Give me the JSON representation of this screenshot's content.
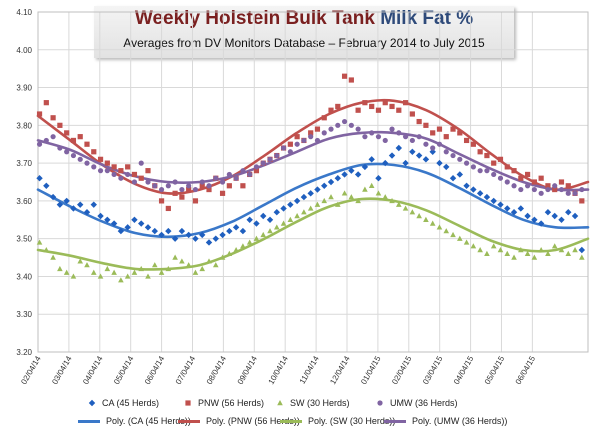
{
  "chart_data": {
    "type": "scatter",
    "title_part1": "Weekly Holstein Bulk Tank",
    "title_part2": "Milk Fat %",
    "subtitle": "Averages from DV Monitors Database – February 2014 to July 2015",
    "y_ticks": [
      "3.20",
      "3.30",
      "3.40",
      "3.50",
      "3.60",
      "3.70",
      "3.80",
      "3.90",
      "4.00",
      "4.10"
    ],
    "ylim": [
      3.2,
      4.1
    ],
    "x_ticks": [
      "02/04/14",
      "03/04/14",
      "04/04/14",
      "05/04/14",
      "06/04/14",
      "07/04/14",
      "08/04/14",
      "09/04/14",
      "10/04/14",
      "11/04/14",
      "12/04/14",
      "01/04/15",
      "02/04/15",
      "03/04/15",
      "04/04/15",
      "05/04/15",
      "06/04/15"
    ],
    "xlim": [
      0,
      17.8
    ],
    "grid": true,
    "legend_position": "bottom",
    "series": [
      {
        "name": "CA (45 Herds)",
        "marker": "diamond",
        "color": "#1f5fbf",
        "values": [
          3.66,
          3.64,
          3.61,
          3.59,
          3.6,
          3.58,
          3.59,
          3.57,
          3.59,
          3.56,
          3.55,
          3.54,
          3.52,
          3.53,
          3.55,
          3.54,
          3.53,
          3.52,
          3.51,
          3.52,
          3.5,
          3.52,
          3.51,
          3.5,
          3.51,
          3.49,
          3.5,
          3.51,
          3.52,
          3.53,
          3.52,
          3.55,
          3.54,
          3.56,
          3.55,
          3.57,
          3.58,
          3.59,
          3.6,
          3.61,
          3.62,
          3.63,
          3.64,
          3.65,
          3.66,
          3.67,
          3.68,
          3.67,
          3.69,
          3.71,
          3.66,
          3.7,
          3.72,
          3.74,
          3.7,
          3.73,
          3.72,
          3.71,
          3.73,
          3.7,
          3.69,
          3.66,
          3.67,
          3.64,
          3.63,
          3.62,
          3.61,
          3.6,
          3.59,
          3.58,
          3.57,
          3.58,
          3.56,
          3.55,
          3.54,
          3.57,
          3.56,
          3.55,
          3.57,
          3.56,
          3.47
        ]
      },
      {
        "name": "PNW (56 Herds)",
        "marker": "square",
        "color": "#c0504d",
        "values": [
          3.83,
          3.86,
          3.82,
          3.8,
          3.78,
          3.76,
          3.77,
          3.75,
          3.73,
          3.71,
          3.7,
          3.69,
          3.68,
          3.69,
          3.67,
          3.66,
          3.68,
          3.64,
          3.6,
          3.58,
          3.62,
          3.61,
          3.63,
          3.6,
          3.64,
          3.63,
          3.66,
          3.62,
          3.64,
          3.66,
          3.64,
          3.67,
          3.68,
          3.7,
          3.71,
          3.72,
          3.74,
          3.75,
          3.77,
          3.76,
          3.78,
          3.79,
          3.82,
          3.84,
          3.85,
          3.93,
          3.92,
          3.84,
          3.86,
          3.85,
          3.84,
          3.86,
          3.85,
          3.84,
          3.86,
          3.83,
          3.81,
          3.8,
          3.78,
          3.79,
          3.77,
          3.79,
          3.78,
          3.76,
          3.75,
          3.73,
          3.72,
          3.7,
          3.71,
          3.69,
          3.68,
          3.66,
          3.67,
          3.65,
          3.66,
          3.64,
          3.63,
          3.65,
          3.64,
          3.62,
          3.6
        ]
      },
      {
        "name": "SW (30 Herds)",
        "marker": "triangle",
        "color": "#9bbb59",
        "values": [
          3.49,
          3.47,
          3.45,
          3.42,
          3.41,
          3.4,
          3.44,
          3.43,
          3.41,
          3.4,
          3.42,
          3.41,
          3.39,
          3.4,
          3.41,
          3.42,
          3.4,
          3.43,
          3.41,
          3.42,
          3.45,
          3.44,
          3.43,
          3.41,
          3.42,
          3.44,
          3.43,
          3.45,
          3.46,
          3.47,
          3.48,
          3.49,
          3.5,
          3.51,
          3.52,
          3.53,
          3.54,
          3.55,
          3.56,
          3.57,
          3.58,
          3.59,
          3.6,
          3.61,
          3.59,
          3.62,
          3.61,
          3.6,
          3.63,
          3.64,
          3.62,
          3.61,
          3.6,
          3.59,
          3.58,
          3.57,
          3.56,
          3.55,
          3.54,
          3.53,
          3.52,
          3.51,
          3.5,
          3.49,
          3.48,
          3.47,
          3.46,
          3.48,
          3.47,
          3.46,
          3.45,
          3.47,
          3.46,
          3.45,
          3.47,
          3.46,
          3.48,
          3.47,
          3.46,
          3.47,
          3.45
        ]
      },
      {
        "name": "UMW (36 Herds)",
        "marker": "circle",
        "color": "#8064a2",
        "values": [
          3.75,
          3.76,
          3.77,
          3.74,
          3.73,
          3.72,
          3.71,
          3.7,
          3.69,
          3.68,
          3.68,
          3.67,
          3.66,
          3.67,
          3.65,
          3.7,
          3.65,
          3.64,
          3.63,
          3.64,
          3.65,
          3.63,
          3.64,
          3.63,
          3.65,
          3.64,
          3.66,
          3.65,
          3.67,
          3.66,
          3.68,
          3.67,
          3.69,
          3.7,
          3.71,
          3.72,
          3.74,
          3.73,
          3.75,
          3.76,
          3.77,
          3.76,
          3.78,
          3.79,
          3.8,
          3.81,
          3.8,
          3.79,
          3.77,
          3.78,
          3.77,
          3.76,
          3.79,
          3.78,
          3.77,
          3.76,
          3.77,
          3.75,
          3.74,
          3.75,
          3.73,
          3.72,
          3.71,
          3.7,
          3.69,
          3.68,
          3.68,
          3.67,
          3.66,
          3.65,
          3.64,
          3.63,
          3.64,
          3.63,
          3.62,
          3.63,
          3.64,
          3.63,
          3.62,
          3.62,
          3.63
        ]
      }
    ],
    "trendlines": [
      {
        "name": "Poly. (CA (45 Herds))",
        "color": "#3a78c9",
        "points": [
          3.63,
          3.585,
          3.545,
          3.515,
          3.505,
          3.515,
          3.545,
          3.59,
          3.635,
          3.67,
          3.695,
          3.695,
          3.675,
          3.635,
          3.59,
          3.55,
          3.53,
          3.53
        ]
      },
      {
        "name": "Poly. (PNW (56 Herds))",
        "color": "#c0504d",
        "points": [
          3.825,
          3.76,
          3.695,
          3.645,
          3.62,
          3.63,
          3.665,
          3.72,
          3.78,
          3.83,
          3.86,
          3.865,
          3.84,
          3.79,
          3.725,
          3.665,
          3.63,
          3.65
        ]
      },
      {
        "name": "Poly. (SW (30 Herds))",
        "color": "#9bbb59",
        "points": [
          3.47,
          3.455,
          3.435,
          3.42,
          3.42,
          3.43,
          3.46,
          3.5,
          3.545,
          3.585,
          3.605,
          3.6,
          3.575,
          3.535,
          3.495,
          3.47,
          3.47,
          3.5
        ]
      },
      {
        "name": "Poly. (UMW (36 Herds))",
        "color": "#8064a2",
        "points": [
          3.76,
          3.735,
          3.695,
          3.665,
          3.65,
          3.65,
          3.665,
          3.695,
          3.73,
          3.765,
          3.78,
          3.78,
          3.765,
          3.725,
          3.685,
          3.65,
          3.63,
          3.63
        ]
      }
    ]
  }
}
